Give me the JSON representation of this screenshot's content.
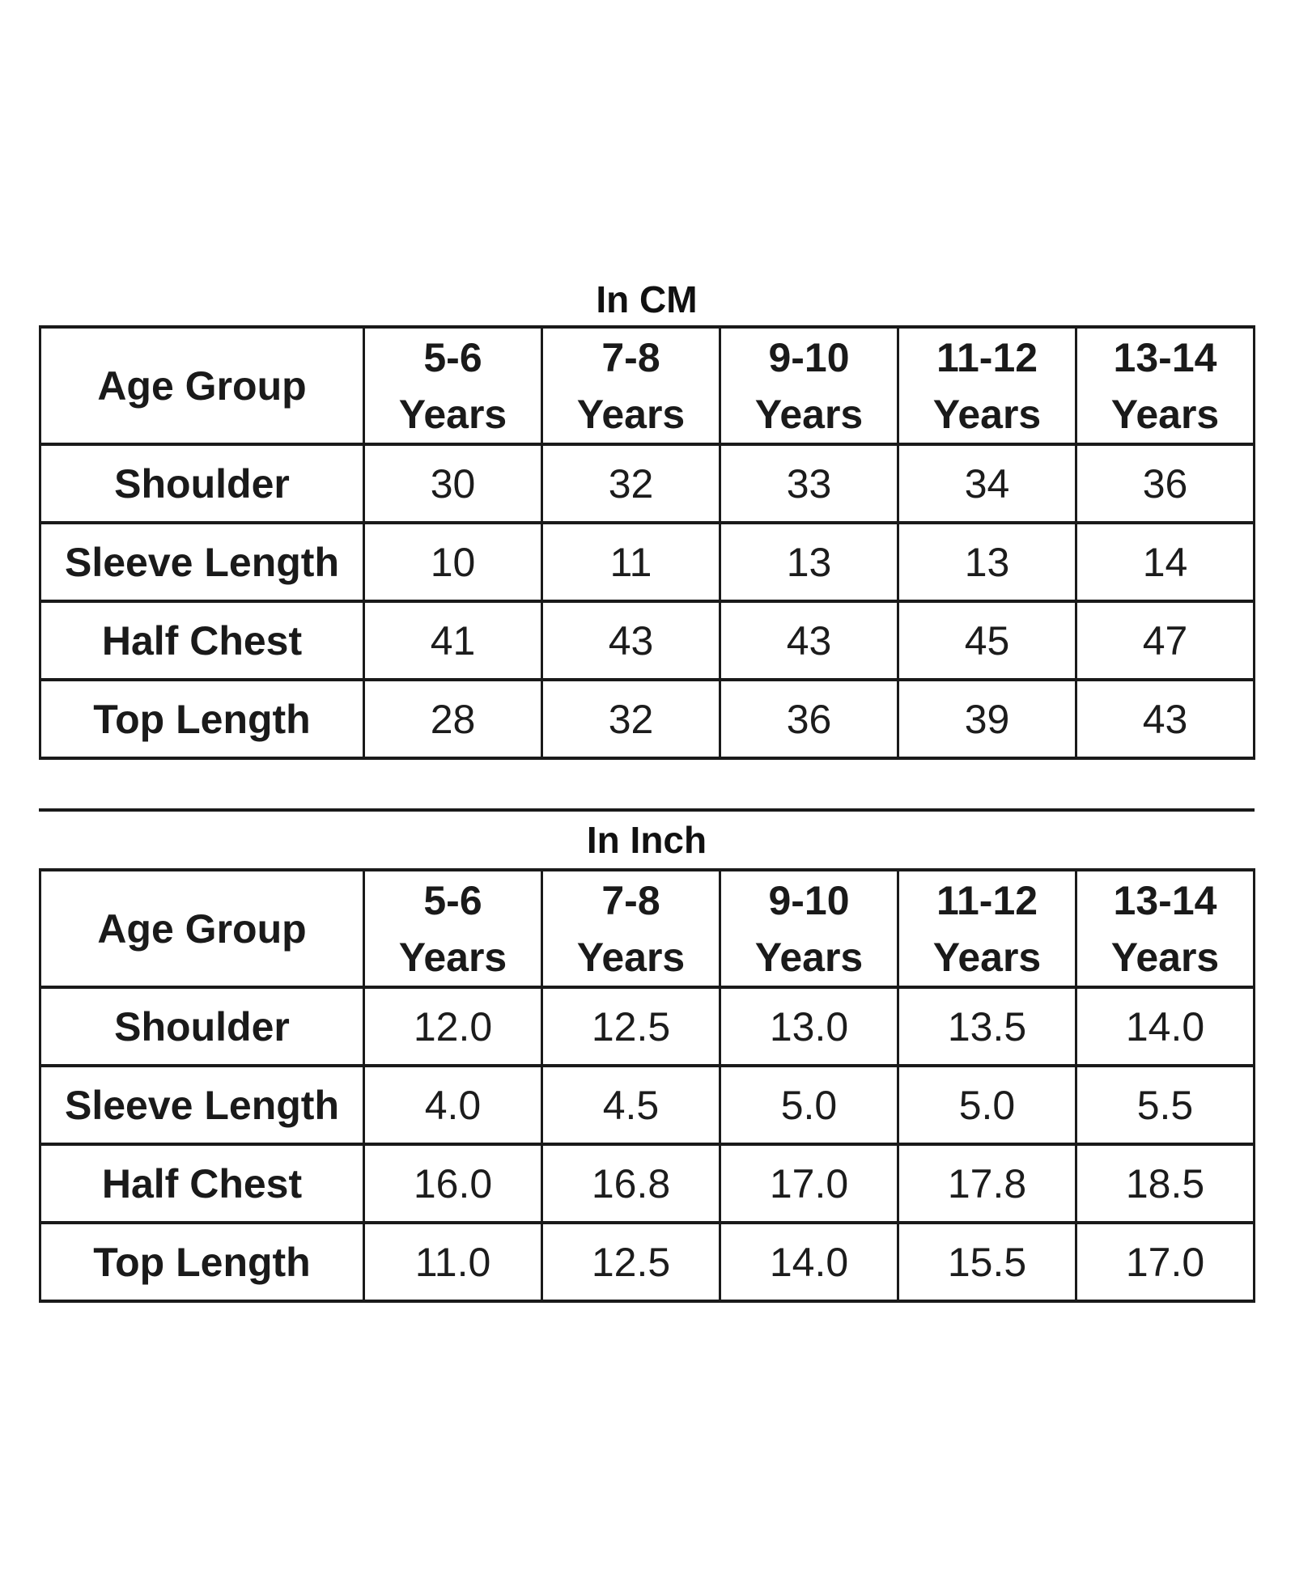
{
  "page": {
    "background": "#ffffff",
    "text_color": "#1a1a1a",
    "border_color": "#1a1a1a"
  },
  "tables": [
    {
      "title": "In CM",
      "corner_label": "Age Group",
      "columns": [
        {
          "line1": "5-6",
          "line2": "Years"
        },
        {
          "line1": "7-8",
          "line2": "Years"
        },
        {
          "line1": "9-10",
          "line2": "Years"
        },
        {
          "line1": "11-12",
          "line2": "Years"
        },
        {
          "line1": "13-14",
          "line2": "Years"
        }
      ],
      "rows": [
        {
          "label": "Shoulder",
          "values": [
            "30",
            "32",
            "33",
            "34",
            "36"
          ]
        },
        {
          "label": "Sleeve Length",
          "values": [
            "10",
            "11",
            "13",
            "13",
            "14"
          ]
        },
        {
          "label": "Half Chest",
          "values": [
            "41",
            "43",
            "43",
            "45",
            "47"
          ]
        },
        {
          "label": "Top Length",
          "values": [
            "28",
            "32",
            "36",
            "39",
            "43"
          ]
        }
      ]
    },
    {
      "title": "In Inch",
      "corner_label": "Age Group",
      "columns": [
        {
          "line1": "5-6",
          "line2": "Years"
        },
        {
          "line1": "7-8",
          "line2": "Years"
        },
        {
          "line1": "9-10",
          "line2": "Years"
        },
        {
          "line1": "11-12",
          "line2": "Years"
        },
        {
          "line1": "13-14",
          "line2": "Years"
        }
      ],
      "rows": [
        {
          "label": "Shoulder",
          "values": [
            "12.0",
            "12.5",
            "13.0",
            "13.5",
            "14.0"
          ]
        },
        {
          "label": "Sleeve Length",
          "values": [
            "4.0",
            "4.5",
            "5.0",
            "5.0",
            "5.5"
          ]
        },
        {
          "label": "Half Chest",
          "values": [
            "16.0",
            "16.8",
            "17.0",
            "17.8",
            "18.5"
          ]
        },
        {
          "label": "Top Length",
          "values": [
            "11.0",
            "12.5",
            "14.0",
            "15.5",
            "17.0"
          ]
        }
      ]
    }
  ]
}
